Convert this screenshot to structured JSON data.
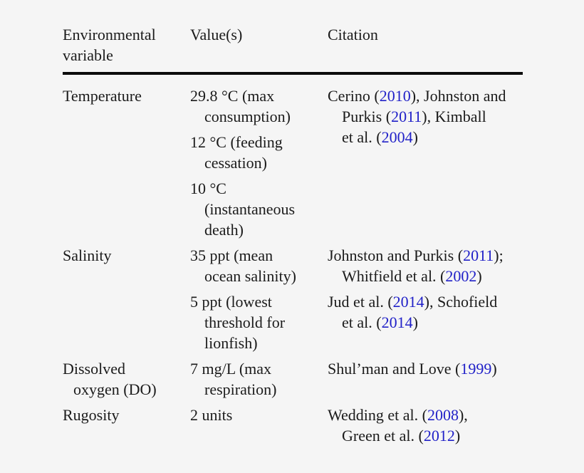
{
  "page": {
    "background_color": "#f5f5f5",
    "text_color": "#1b1b1b",
    "link_color": "#2121c8",
    "rule_color": "#0b0b0b"
  },
  "table": {
    "headers": {
      "variable": "Environmental\nvariable",
      "values": "Value(s)",
      "citation": "Citation"
    },
    "rows": [
      {
        "variable": "Temperature",
        "values": [
          "29.8 °C (max\nconsumption)",
          "12 °C (feeding\ncessation)",
          "10 °C\n(instantaneous\ndeath)"
        ],
        "citations": [
          "Cerino ([2010]), Johnston and\nPurkis ([2011]), Kimball\net al. ([2004])"
        ]
      },
      {
        "variable": "Salinity",
        "values": [
          "35 ppt (mean\nocean salinity)",
          "5 ppt (lowest\nthreshold for\nlionfish)"
        ],
        "citations": [
          "Johnston and Purkis ([2011]);\nWhitfield et al. ([2002])",
          "Jud et al. ([2014]), Schofield\net al. ([2014])"
        ]
      },
      {
        "variable": "Dissolved\noxygen (DO)",
        "values": [
          "7 mg/L (max\nrespiration)"
        ],
        "citations": [
          "Shul’man and Love ([1999])"
        ]
      },
      {
        "variable": "Rugosity",
        "values": [
          "2 units"
        ],
        "citations": [
          "Wedding et al. ([2008]),\nGreen et al. ([2012])"
        ]
      }
    ]
  }
}
